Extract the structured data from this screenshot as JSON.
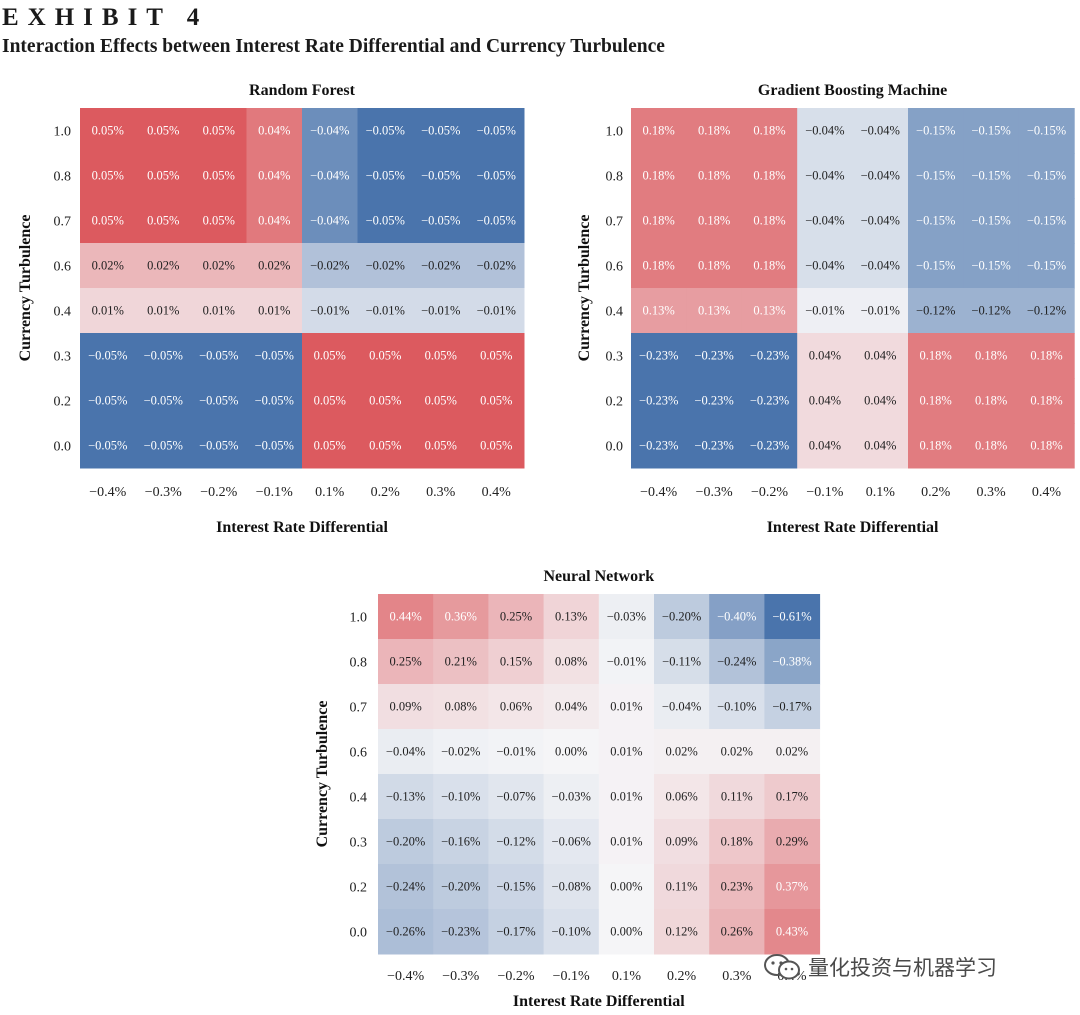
{
  "header": {
    "exhibit": "EXHIBIT 4",
    "title": "Interaction Effects between Interest Rate Differential and Currency Turbulence"
  },
  "watermark": {
    "text": "量化投资与机器学习",
    "icon": "wechat-icon"
  },
  "colors": {
    "positive": "#dc5a5f",
    "negative": "#4a74ac",
    "neutral": "#f5f5f7"
  },
  "chart_data": [
    {
      "type": "heatmap",
      "title": "Random Forest",
      "xlabel": "Interest Rate Differential",
      "ylabel": "Currency Turbulence",
      "x_categories": [
        "−0.4%",
        "−0.3%",
        "−0.2%",
        "−0.1%",
        "0.1%",
        "0.2%",
        "0.3%",
        "0.4%"
      ],
      "y_categories": [
        "1.0",
        "0.8",
        "0.7",
        "0.6",
        "0.4",
        "0.3",
        "0.2",
        "0.0"
      ],
      "color_range": [
        -0.05,
        0.05
      ],
      "values": [
        [
          0.05,
          0.05,
          0.05,
          0.04,
          -0.04,
          -0.05,
          -0.05,
          -0.05
        ],
        [
          0.05,
          0.05,
          0.05,
          0.04,
          -0.04,
          -0.05,
          -0.05,
          -0.05
        ],
        [
          0.05,
          0.05,
          0.05,
          0.04,
          -0.04,
          -0.05,
          -0.05,
          -0.05
        ],
        [
          0.02,
          0.02,
          0.02,
          0.02,
          -0.02,
          -0.02,
          -0.02,
          -0.02
        ],
        [
          0.01,
          0.01,
          0.01,
          0.01,
          -0.01,
          -0.01,
          -0.01,
          -0.01
        ],
        [
          -0.05,
          -0.05,
          -0.05,
          -0.05,
          0.05,
          0.05,
          0.05,
          0.05
        ],
        [
          -0.05,
          -0.05,
          -0.05,
          -0.05,
          0.05,
          0.05,
          0.05,
          0.05
        ],
        [
          -0.05,
          -0.05,
          -0.05,
          -0.05,
          0.05,
          0.05,
          0.05,
          0.05
        ]
      ],
      "labels": [
        [
          "0.05%",
          "0.05%",
          "0.05%",
          "0.04%",
          "−0.04%",
          "−0.05%",
          "−0.05%",
          "−0.05%"
        ],
        [
          "0.05%",
          "0.05%",
          "0.05%",
          "0.04%",
          "−0.04%",
          "−0.05%",
          "−0.05%",
          "−0.05%"
        ],
        [
          "0.05%",
          "0.05%",
          "0.05%",
          "0.04%",
          "−0.04%",
          "−0.05%",
          "−0.05%",
          "−0.05%"
        ],
        [
          "0.02%",
          "0.02%",
          "0.02%",
          "0.02%",
          "−0.02%",
          "−0.02%",
          "−0.02%",
          "−0.02%"
        ],
        [
          "0.01%",
          "0.01%",
          "0.01%",
          "0.01%",
          "−0.01%",
          "−0.01%",
          "−0.01%",
          "−0.01%"
        ],
        [
          "−0.05%",
          "−0.05%",
          "−0.05%",
          "−0.05%",
          "0.05%",
          "0.05%",
          "0.05%",
          "0.05%"
        ],
        [
          "−0.05%",
          "−0.05%",
          "−0.05%",
          "−0.05%",
          "0.05%",
          "0.05%",
          "0.05%",
          "0.05%"
        ],
        [
          "−0.05%",
          "−0.05%",
          "−0.05%",
          "−0.05%",
          "0.05%",
          "0.05%",
          "0.05%",
          "0.05%"
        ]
      ]
    },
    {
      "type": "heatmap",
      "title": "Gradient Boosting Machine",
      "xlabel": "Interest Rate Differential",
      "ylabel": "Currency Turbulence",
      "x_categories": [
        "−0.4%",
        "−0.3%",
        "−0.2%",
        "−0.1%",
        "0.1%",
        "0.2%",
        "0.3%",
        "0.4%"
      ],
      "y_categories": [
        "1.0",
        "0.8",
        "0.7",
        "0.6",
        "0.4",
        "0.3",
        "0.2",
        "0.0"
      ],
      "color_range": [
        -0.23,
        0.23
      ],
      "values": [
        [
          0.18,
          0.18,
          0.18,
          -0.04,
          -0.04,
          -0.15,
          -0.15,
          -0.15
        ],
        [
          0.18,
          0.18,
          0.18,
          -0.04,
          -0.04,
          -0.15,
          -0.15,
          -0.15
        ],
        [
          0.18,
          0.18,
          0.18,
          -0.04,
          -0.04,
          -0.15,
          -0.15,
          -0.15
        ],
        [
          0.18,
          0.18,
          0.18,
          -0.04,
          -0.04,
          -0.15,
          -0.15,
          -0.15
        ],
        [
          0.13,
          0.13,
          0.13,
          -0.01,
          -0.01,
          -0.12,
          -0.12,
          -0.12
        ],
        [
          -0.23,
          -0.23,
          -0.23,
          0.04,
          0.04,
          0.18,
          0.18,
          0.18
        ],
        [
          -0.23,
          -0.23,
          -0.23,
          0.04,
          0.04,
          0.18,
          0.18,
          0.18
        ],
        [
          -0.23,
          -0.23,
          -0.23,
          0.04,
          0.04,
          0.18,
          0.18,
          0.18
        ]
      ],
      "labels": [
        [
          "0.18%",
          "0.18%",
          "0.18%",
          "−0.04%",
          "−0.04%",
          "−0.15%",
          "−0.15%",
          "−0.15%"
        ],
        [
          "0.18%",
          "0.18%",
          "0.18%",
          "−0.04%",
          "−0.04%",
          "−0.15%",
          "−0.15%",
          "−0.15%"
        ],
        [
          "0.18%",
          "0.18%",
          "0.18%",
          "−0.04%",
          "−0.04%",
          "−0.15%",
          "−0.15%",
          "−0.15%"
        ],
        [
          "0.18%",
          "0.18%",
          "0.18%",
          "−0.04%",
          "−0.04%",
          "−0.15%",
          "−0.15%",
          "−0.15%"
        ],
        [
          "0.13%",
          "0.13%",
          "0.13%",
          "−0.01%",
          "−0.01%",
          "−0.12%",
          "−0.12%",
          "−0.12%"
        ],
        [
          "−0.23%",
          "−0.23%",
          "−0.23%",
          "0.04%",
          "0.04%",
          "0.18%",
          "0.18%",
          "0.18%"
        ],
        [
          "−0.23%",
          "−0.23%",
          "−0.23%",
          "0.04%",
          "0.04%",
          "0.18%",
          "0.18%",
          "0.18%"
        ],
        [
          "−0.23%",
          "−0.23%",
          "−0.23%",
          "0.04%",
          "0.04%",
          "0.18%",
          "0.18%",
          "0.18%"
        ]
      ]
    },
    {
      "type": "heatmap",
      "title": "Neural Network",
      "xlabel": "Interest Rate Differential",
      "ylabel": "Currency Turbulence",
      "x_categories": [
        "−0.4%",
        "−0.3%",
        "−0.2%",
        "−0.1%",
        "0.1%",
        "0.2%",
        "0.3%",
        "0.4%"
      ],
      "y_categories": [
        "1.0",
        "0.8",
        "0.7",
        "0.6",
        "0.4",
        "0.3",
        "0.2",
        "0.0"
      ],
      "color_range": [
        -0.61,
        0.61
      ],
      "values": [
        [
          0.44,
          0.36,
          0.25,
          0.13,
          -0.03,
          -0.2,
          -0.4,
          -0.61
        ],
        [
          0.25,
          0.21,
          0.15,
          0.08,
          -0.01,
          -0.11,
          -0.24,
          -0.38
        ],
        [
          0.09,
          0.08,
          0.06,
          0.04,
          0.01,
          -0.04,
          -0.1,
          -0.17
        ],
        [
          -0.04,
          -0.02,
          -0.01,
          0.0,
          0.01,
          0.02,
          0.02,
          0.02
        ],
        [
          -0.13,
          -0.1,
          -0.07,
          -0.03,
          0.01,
          0.06,
          0.11,
          0.17
        ],
        [
          -0.2,
          -0.16,
          -0.12,
          -0.06,
          0.01,
          0.09,
          0.18,
          0.29
        ],
        [
          -0.24,
          -0.2,
          -0.15,
          -0.08,
          0.0,
          0.11,
          0.23,
          0.37
        ],
        [
          -0.26,
          -0.23,
          -0.17,
          -0.1,
          0.0,
          0.12,
          0.26,
          0.43
        ]
      ],
      "labels": [
        [
          "0.44%",
          "0.36%",
          "0.25%",
          "0.13%",
          "−0.03%",
          "−0.20%",
          "−0.40%",
          "−0.61%"
        ],
        [
          "0.25%",
          "0.21%",
          "0.15%",
          "0.08%",
          "−0.01%",
          "−0.11%",
          "−0.24%",
          "−0.38%"
        ],
        [
          "0.09%",
          "0.08%",
          "0.06%",
          "0.04%",
          "0.01%",
          "−0.04%",
          "−0.10%",
          "−0.17%"
        ],
        [
          "−0.04%",
          "−0.02%",
          "−0.01%",
          "0.00%",
          "0.01%",
          "0.02%",
          "0.02%",
          "0.02%"
        ],
        [
          "−0.13%",
          "−0.10%",
          "−0.07%",
          "−0.03%",
          "0.01%",
          "0.06%",
          "0.11%",
          "0.17%"
        ],
        [
          "−0.20%",
          "−0.16%",
          "−0.12%",
          "−0.06%",
          "0.01%",
          "0.09%",
          "0.18%",
          "0.29%"
        ],
        [
          "−0.24%",
          "−0.20%",
          "−0.15%",
          "−0.08%",
          "0.00%",
          "0.11%",
          "0.23%",
          "0.37%"
        ],
        [
          "−0.26%",
          "−0.23%",
          "−0.17%",
          "−0.10%",
          "0.00%",
          "0.12%",
          "0.26%",
          "0.43%"
        ]
      ]
    }
  ]
}
